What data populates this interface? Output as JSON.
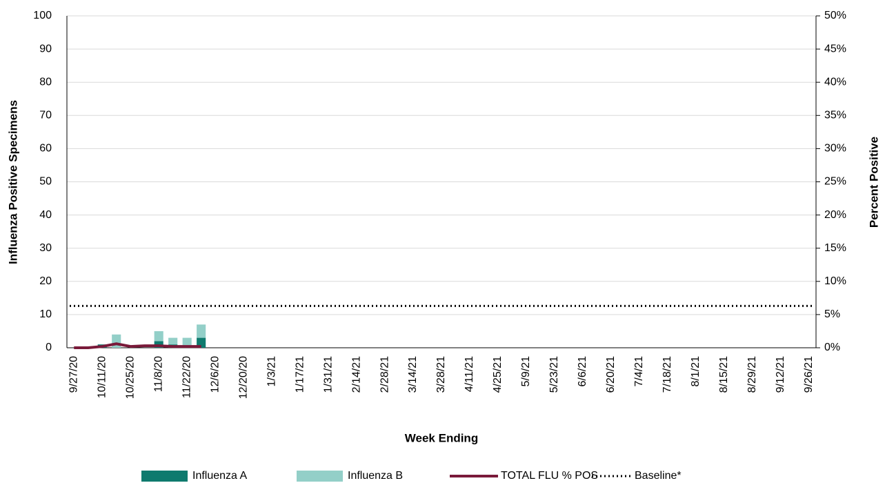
{
  "chart_data": {
    "type": "bar",
    "y_label": "Influenza Positive Specimens",
    "y2_label": "Percent Positive",
    "x_label": "Week Ending",
    "categories": [
      "9/27/20",
      null,
      "10/11/20",
      null,
      "10/25/20",
      null,
      "11/8/20",
      null,
      "11/22/20",
      null,
      "12/6/20",
      null,
      "12/20/20",
      null,
      "1/3/21",
      null,
      "1/17/21",
      null,
      "1/31/21",
      null,
      "2/14/21",
      null,
      "2/28/21",
      null,
      "3/14/21",
      null,
      "3/28/21",
      null,
      "4/11/21",
      null,
      "4/25/21",
      null,
      "5/9/21",
      null,
      "5/23/21",
      null,
      "6/6/21",
      null,
      "6/20/21",
      null,
      "7/4/21",
      null,
      "7/18/21",
      null,
      "8/1/21",
      null,
      "8/15/21",
      null,
      "8/29/21",
      null,
      "9/12/21",
      null,
      "9/26/21"
    ],
    "series": [
      {
        "name": "Influenza A",
        "type": "bar",
        "color": "#0e7a6e",
        "values": [
          0,
          0,
          1,
          0,
          0,
          0,
          2,
          1,
          0,
          3,
          null,
          null,
          null,
          null,
          null,
          null,
          null,
          null,
          null,
          null,
          null,
          null,
          null,
          null,
          null,
          null,
          null,
          null,
          null,
          null,
          null,
          null,
          null,
          null,
          null,
          null,
          null,
          null,
          null,
          null,
          null,
          null,
          null,
          null,
          null,
          null,
          null,
          null,
          null,
          null,
          null,
          null,
          null
        ]
      },
      {
        "name": "Influenza B",
        "type": "bar",
        "color": "#93cfc8",
        "values": [
          0,
          0,
          0,
          4,
          0,
          0,
          3,
          2,
          3,
          4,
          null,
          null,
          null,
          null,
          null,
          null,
          null,
          null,
          null,
          null,
          null,
          null,
          null,
          null,
          null,
          null,
          null,
          null,
          null,
          null,
          null,
          null,
          null,
          null,
          null,
          null,
          null,
          null,
          null,
          null,
          null,
          null,
          null,
          null,
          null,
          null,
          null,
          null,
          null,
          null,
          null,
          null,
          null
        ]
      },
      {
        "name": "TOTAL FLU % POS",
        "type": "line",
        "axis": "y2",
        "color": "#7a1a3a",
        "values": [
          0,
          0,
          0.2,
          0.6,
          0.2,
          0.3,
          0.3,
          0.2,
          0.2,
          0.2,
          null,
          null,
          null,
          null,
          null,
          null,
          null,
          null,
          null,
          null,
          null,
          null,
          null,
          null,
          null,
          null,
          null,
          null,
          null,
          null,
          null,
          null,
          null,
          null,
          null,
          null,
          null,
          null,
          null,
          null,
          null,
          null,
          null,
          null,
          null,
          null,
          null,
          null,
          null,
          null,
          null,
          null,
          null
        ]
      },
      {
        "name": "Baseline*",
        "type": "hline",
        "axis": "y2",
        "color": "#000000",
        "value": 6.3
      }
    ],
    "ylim": [
      0,
      100
    ],
    "yticks": [
      0,
      10,
      20,
      30,
      40,
      50,
      60,
      70,
      80,
      90,
      100
    ],
    "y2lim": [
      0,
      50
    ],
    "y2ticks": [
      {
        "value": 0,
        "label": "0%"
      },
      {
        "value": 5,
        "label": "5%"
      },
      {
        "value": 10,
        "label": "10%"
      },
      {
        "value": 15,
        "label": "15%"
      },
      {
        "value": 20,
        "label": "20%"
      },
      {
        "value": 25,
        "label": "25%"
      },
      {
        "value": 30,
        "label": "30%"
      },
      {
        "value": 35,
        "label": "35%"
      },
      {
        "value": 40,
        "label": "40%"
      },
      {
        "value": 45,
        "label": "45%"
      },
      {
        "value": 50,
        "label": "50%"
      }
    ],
    "grid": true,
    "stacked": true,
    "legend": "bottom"
  }
}
